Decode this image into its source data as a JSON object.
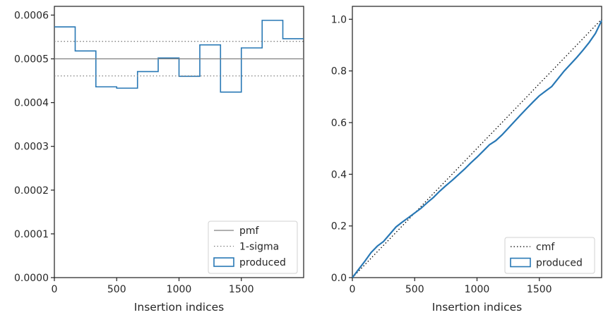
{
  "chart_data": [
    {
      "type": "step",
      "xlabel": "Insertion indices",
      "ylabel": "",
      "xlim": [
        0,
        2000
      ],
      "ylim": [
        0,
        0.00062
      ],
      "x_ticks": [
        0,
        500,
        1000,
        1500
      ],
      "x_tick_labels": [
        "0",
        "500",
        "1000",
        "1500"
      ],
      "y_ticks": [
        0,
        0.0001,
        0.0002,
        0.0003,
        0.0004,
        0.0005,
        0.0006
      ],
      "y_tick_labels": [
        "0.0000",
        "0.0001",
        "0.0002",
        "0.0003",
        "0.0004",
        "0.0005",
        "0.0006"
      ],
      "bin_edges": [
        0,
        167,
        333,
        500,
        667,
        833,
        1000,
        1167,
        1333,
        1500,
        1667,
        1833,
        2000
      ],
      "series": [
        {
          "name": "produced",
          "style": "step",
          "color": "#2878b5",
          "values": [
            0.000573,
            0.000518,
            0.000436,
            0.000433,
            0.000471,
            0.000502,
            0.00046,
            0.000532,
            0.000424,
            0.000525,
            0.000588,
            0.000546
          ]
        },
        {
          "name": "pmf",
          "style": "solid",
          "color": "#808080",
          "value": 0.0005
        },
        {
          "name": "1-sigma",
          "style": "dotted",
          "color": "#808080",
          "values": [
            0.000461,
            0.00054
          ]
        }
      ],
      "legend": {
        "position": "lower-right",
        "entries": [
          "pmf",
          "1-sigma",
          "produced"
        ]
      }
    },
    {
      "type": "line",
      "xlabel": "Insertion indices",
      "ylabel": "",
      "xlim": [
        0,
        2000
      ],
      "ylim": [
        0,
        1.05
      ],
      "x_ticks": [
        0,
        500,
        1000,
        1500
      ],
      "x_tick_labels": [
        "0",
        "500",
        "1000",
        "1500"
      ],
      "y_ticks": [
        0,
        0.2,
        0.4,
        0.6,
        0.8,
        1.0
      ],
      "y_tick_labels": [
        "0.0",
        "0.2",
        "0.4",
        "0.6",
        "0.8",
        "1.0"
      ],
      "series": [
        {
          "name": "cmf",
          "style": "dotted",
          "color": "#000000",
          "x": [
            0,
            2000
          ],
          "y": [
            0,
            1.0
          ]
        },
        {
          "name": "produced",
          "style": "solid",
          "color": "#2878b5",
          "x": [
            0,
            50,
            100,
            150,
            200,
            250,
            300,
            350,
            400,
            450,
            500,
            550,
            600,
            650,
            700,
            750,
            800,
            850,
            900,
            950,
            1000,
            1050,
            1100,
            1150,
            1200,
            1250,
            1300,
            1350,
            1400,
            1450,
            1500,
            1550,
            1600,
            1650,
            1700,
            1750,
            1800,
            1850,
            1900,
            1950,
            2000
          ],
          "y": [
            0,
            0.032,
            0.063,
            0.097,
            0.122,
            0.14,
            0.168,
            0.196,
            0.215,
            0.232,
            0.25,
            0.268,
            0.29,
            0.31,
            0.334,
            0.356,
            0.376,
            0.398,
            0.42,
            0.444,
            0.466,
            0.49,
            0.514,
            0.53,
            0.552,
            0.578,
            0.604,
            0.63,
            0.655,
            0.68,
            0.704,
            0.722,
            0.74,
            0.77,
            0.8,
            0.826,
            0.852,
            0.88,
            0.91,
            0.945,
            0.995
          ]
        }
      ],
      "legend": {
        "position": "lower-right",
        "entries": [
          "cmf",
          "produced"
        ]
      }
    }
  ]
}
